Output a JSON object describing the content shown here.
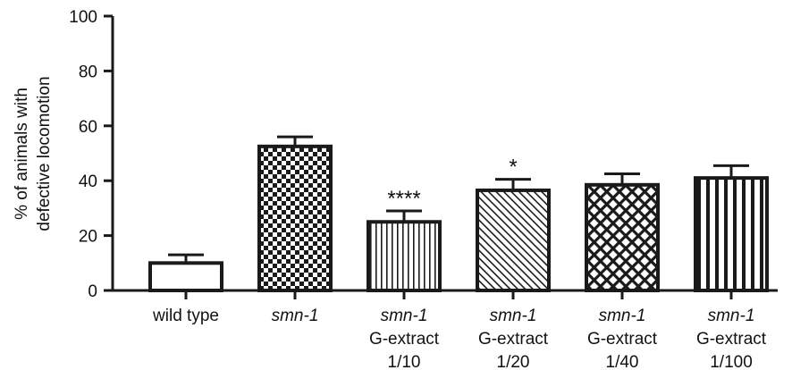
{
  "chart_data": {
    "type": "bar",
    "ylabel": [
      "% of animals with",
      "defective locomotion"
    ],
    "ylim": [
      0,
      100
    ],
    "yticks": [
      0,
      20,
      40,
      60,
      80,
      100
    ],
    "categories": [
      {
        "lines": [
          "wild type"
        ],
        "italic_first_line": false
      },
      {
        "lines": [
          "smn-1"
        ],
        "italic_first_line": true
      },
      {
        "lines": [
          "smn-1",
          "G-extract",
          "1/10"
        ],
        "italic_first_line": true
      },
      {
        "lines": [
          "smn-1",
          "G-extract",
          "1/20"
        ],
        "italic_first_line": true
      },
      {
        "lines": [
          "smn-1",
          "G-extract",
          "1/40"
        ],
        "italic_first_line": true
      },
      {
        "lines": [
          "smn-1",
          "G-extract",
          "1/100"
        ],
        "italic_first_line": true
      }
    ],
    "values": [
      10,
      52.5,
      25,
      36.5,
      38.5,
      41
    ],
    "errors": [
      3,
      3.5,
      4,
      4,
      4,
      4.5
    ],
    "patterns": [
      "none",
      "checker",
      "vertical-lines",
      "diagonal-lines",
      "crosshatch",
      "wide-vertical-lines"
    ],
    "significance": [
      "",
      "",
      "****",
      "*",
      "",
      ""
    ],
    "colors": {
      "stroke": "#1a1a1a",
      "fill": "#ffffff",
      "text": "#111111"
    }
  }
}
